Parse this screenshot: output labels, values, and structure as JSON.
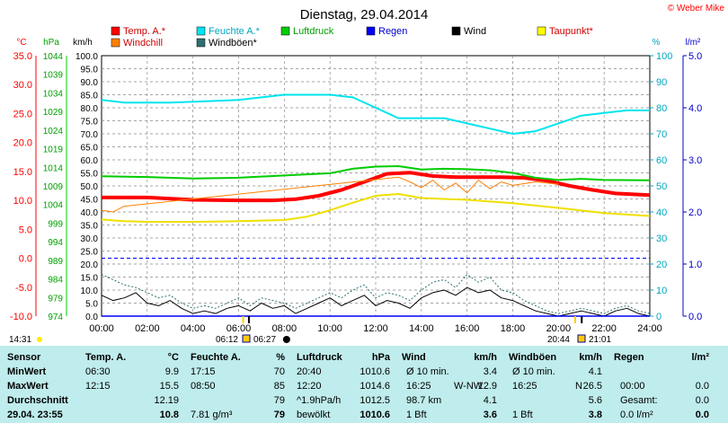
{
  "title": "Dienstag, 29.04.2014",
  "copyright": "© Weber Mike",
  "units": {
    "temp": "°C",
    "press": "hPa",
    "wind": "km/h",
    "pct": "%",
    "rain": "l/m²"
  },
  "axes": {
    "temp_ticks": [
      "35.0",
      "30.0",
      "25.0",
      "20.0",
      "15.0",
      "10.0",
      "5.0",
      "0.0",
      "-5.0",
      "-10.0"
    ],
    "press_ticks": [
      "1044",
      "1039",
      "1034",
      "1029",
      "1024",
      "1019",
      "1014",
      "1009",
      "1004",
      "999",
      "994",
      "989",
      "984",
      "979",
      "974"
    ],
    "wind_ticks": [
      "100.0",
      "95.0",
      "90.0",
      "85.0",
      "80.0",
      "75.0",
      "70.0",
      "65.0",
      "60.0",
      "55.0",
      "50.0",
      "45.0",
      "40.0",
      "35.0",
      "30.0",
      "25.0",
      "20.0",
      "15.0",
      "10.0",
      "5.0",
      "0.0"
    ],
    "pct_ticks": [
      "100",
      "90",
      "80",
      "70",
      "60",
      "50",
      "40",
      "30",
      "20",
      "10",
      "0"
    ],
    "rain_ticks": [
      "5.0",
      "4.0",
      "3.0",
      "2.0",
      "1.0",
      "0.0"
    ],
    "time_ticks": [
      "00:00",
      "02:00",
      "04:00",
      "06:00",
      "08:00",
      "10:00",
      "12:00",
      "14:00",
      "16:00",
      "18:00",
      "20:00",
      "22:00",
      "24:00"
    ],
    "sunrise": "06:12",
    "sunset": "20:44",
    "moon_time": "06:27",
    "moon_set": "21:01",
    "extra_time": "14:31"
  },
  "legend": [
    {
      "label": "Temp. A.*",
      "color": "#ff0000"
    },
    {
      "label": "Feuchte A.*",
      "color": "#00e5ee"
    },
    {
      "label": "Luftdruck",
      "color": "#00cc00"
    },
    {
      "label": "Regen",
      "color": "#0000ff"
    },
    {
      "label": "Wind",
      "color": "#000000"
    },
    {
      "label": "Taupunkt*",
      "color": "#ffff00"
    },
    {
      "label": "Windchill",
      "color": "#ff8000"
    },
    {
      "label": "Windböen*",
      "color": "#2f6f6f"
    }
  ],
  "chart_data": {
    "type": "line",
    "x_unit": "hours",
    "xlim": [
      0,
      24
    ],
    "series": [
      {
        "name": "Temp. A.*",
        "axis": "°C",
        "ylim": [
          -10,
          35
        ],
        "x": [
          0,
          2,
          4,
          6,
          7.5,
          8.5,
          9.5,
          10.5,
          11.5,
          12.5,
          13.5,
          14.5,
          15.5,
          16.5,
          17.5,
          18.5,
          19.5,
          20.5,
          21.5,
          22.5,
          24
        ],
        "y": [
          10.5,
          10.5,
          10.1,
          10.0,
          10.0,
          10.2,
          10.8,
          11.8,
          13.2,
          14.6,
          14.8,
          14.2,
          14.0,
          14.0,
          14.0,
          13.9,
          13.4,
          12.5,
          11.8,
          11.2,
          10.9
        ]
      },
      {
        "name": "Windchill",
        "axis": "°C",
        "ylim": [
          -10,
          35
        ],
        "x": [
          0,
          0.5,
          1,
          13,
          13.5,
          14,
          14.5,
          15,
          15.5,
          16,
          16.5,
          17,
          17.5,
          18,
          19,
          20
        ],
        "y": [
          8.3,
          8.0,
          9.0,
          14.0,
          13.2,
          12.2,
          13.5,
          11.8,
          13.0,
          11.3,
          13.5,
          12.0,
          13.2,
          12.6,
          13.2,
          12.8
        ]
      },
      {
        "name": "Feuchte A.*",
        "axis": "%",
        "ylim": [
          0,
          100
        ],
        "x": [
          0,
          1,
          3,
          6,
          8,
          10,
          11,
          12,
          13,
          14,
          15,
          16,
          17,
          18,
          19,
          20,
          21,
          22,
          23,
          24
        ],
        "y": [
          83,
          82,
          82,
          83,
          85,
          85,
          84,
          80,
          76,
          76,
          76,
          74,
          72,
          70,
          71,
          74,
          77,
          78,
          79,
          79
        ]
      },
      {
        "name": "Luftdruck",
        "axis": "hPa",
        "ylim": [
          974,
          1044
        ],
        "x": [
          0,
          2,
          4,
          6,
          8,
          10,
          11,
          12,
          13,
          14,
          15,
          16,
          17,
          18,
          19,
          20,
          21,
          22,
          24
        ],
        "y": [
          1011.6,
          1011.4,
          1011.0,
          1011.2,
          1011.8,
          1012.4,
          1013.6,
          1014.2,
          1014.3,
          1013.4,
          1013.6,
          1013.5,
          1013.2,
          1012.5,
          1011.2,
          1010.6,
          1010.9,
          1010.6,
          1010.5
        ]
      },
      {
        "name": "Taupunkt*",
        "axis": "°C",
        "ylim": [
          -10,
          35
        ],
        "x": [
          0,
          1,
          2,
          4,
          6,
          8,
          9,
          10,
          11,
          12,
          13,
          14,
          16,
          18,
          20,
          22,
          24
        ],
        "y": [
          6.7,
          6.4,
          6.3,
          6.3,
          6.4,
          6.6,
          7.2,
          8.3,
          9.6,
          10.8,
          11.1,
          10.4,
          10.1,
          9.5,
          8.7,
          7.8,
          7.3
        ]
      },
      {
        "name": "Wind",
        "axis": "km/h",
        "ylim": [
          0,
          100
        ],
        "x": [
          0,
          0.5,
          1,
          1.5,
          2,
          2.5,
          3,
          3.5,
          4,
          4.5,
          5,
          5.5,
          6,
          6.5,
          7,
          7.5,
          8,
          8.5,
          9,
          9.5,
          10,
          10.5,
          11,
          11.5,
          12,
          12.5,
          13,
          13.5,
          14,
          14.5,
          15,
          15.5,
          16,
          16.5,
          17,
          17.5,
          18,
          18.5,
          19,
          19.5,
          20,
          20.5,
          21,
          21.5,
          22,
          22.5,
          23,
          23.5,
          24
        ],
        "y": [
          8,
          6,
          7,
          9,
          5,
          4,
          6,
          3,
          1,
          2,
          1,
          3,
          4,
          2,
          5,
          3,
          4,
          1,
          3,
          5,
          7,
          4,
          6,
          8,
          4,
          6,
          5,
          3,
          7,
          9,
          10,
          8,
          11,
          9,
          10,
          7,
          6,
          4,
          2,
          1,
          0,
          1,
          2,
          1,
          0,
          2,
          3,
          1,
          0
        ]
      },
      {
        "name": "Windböen*",
        "axis": "km/h",
        "ylim": [
          0,
          100
        ],
        "x": [
          0,
          0.5,
          1,
          1.5,
          2,
          2.5,
          3,
          3.5,
          4,
          4.5,
          5,
          5.5,
          6,
          6.5,
          7,
          7.5,
          8,
          8.5,
          9,
          9.5,
          10,
          10.5,
          11,
          11.5,
          12,
          12.5,
          13,
          13.5,
          14,
          14.5,
          15,
          15.5,
          16,
          16.5,
          17,
          17.5,
          18,
          18.5,
          19,
          19.5,
          20,
          20.5,
          21,
          21.5,
          22,
          22.5,
          23,
          23.5,
          24
        ],
        "y": [
          16,
          14,
          12,
          11,
          9,
          7,
          8,
          5,
          3,
          4,
          3,
          5,
          7,
          4,
          7,
          6,
          5,
          3,
          5,
          7,
          9,
          7,
          10,
          12,
          7,
          9,
          8,
          6,
          10,
          13,
          14,
          11,
          16,
          13,
          15,
          10,
          9,
          6,
          4,
          2,
          1,
          2,
          3,
          2,
          1,
          3,
          4,
          2,
          1
        ]
      },
      {
        "name": "Regen",
        "axis": "l/m²",
        "ylim": [
          0,
          5
        ],
        "x": [
          0,
          24
        ],
        "y": [
          0,
          0
        ]
      }
    ]
  },
  "table": {
    "headers": [
      "Sensor",
      "Temp. A.",
      "°C",
      "Feuchte A.",
      "%",
      "Luftdruck",
      "hPa",
      "Wind",
      "km/h",
      "Windböen",
      "km/h",
      "Regen",
      "l/m²"
    ],
    "rows": [
      {
        "label": "MinWert",
        "temp_time": "06:30",
        "temp": "9.9",
        "hum_time": "17:15",
        "hum": "70",
        "press_time": "20:40",
        "press": "1010.6",
        "wind_desc": "Ø 10 min.",
        "wind": "3.4",
        "gust_desc": "Ø 10 min.",
        "gust": "4.1",
        "rain_desc": "",
        "rain": ""
      },
      {
        "label": "MaxWert",
        "temp_time": "12:15",
        "temp": "15.5",
        "hum_time": "08:50",
        "hum": "85",
        "press_time": "12:20",
        "press": "1014.6",
        "wind_desc": "16:25",
        "wind_dir": "W-NW",
        "wind": "12.9",
        "gust_desc": "16:25",
        "gust_dir": "N",
        "gust": "26.5",
        "rain_desc": "00:00",
        "rain": "0.0"
      },
      {
        "label": "Durchschnitt",
        "temp_time": "",
        "temp": "12.19",
        "hum_time": "",
        "hum": "79",
        "press_time": "^1.9hPa/h",
        "press": "1012.5",
        "wind_desc": "98.7 km",
        "wind": "4.1",
        "gust_desc": "",
        "gust": "5.6",
        "rain_desc": "Gesamt:",
        "rain": "0.0"
      },
      {
        "label": "29.04. 23:55",
        "temp_time": "",
        "temp": "10.8",
        "hum_time": "7.81 g/m³",
        "hum": "79",
        "press_time": "bewölkt",
        "press": "1010.6",
        "wind_desc": "1 Bft",
        "wind": "3.6",
        "gust_desc": "1 Bft",
        "gust": "3.8",
        "rain_desc": "0.0 l/m²",
        "rain": "0.0"
      }
    ]
  }
}
